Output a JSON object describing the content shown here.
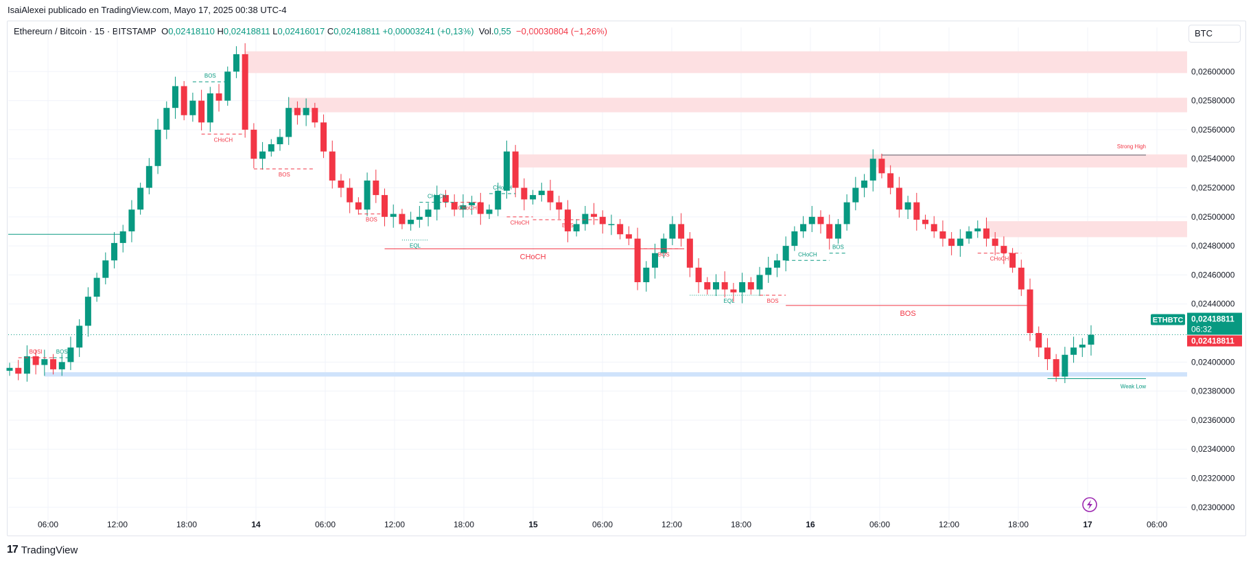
{
  "header": {
    "published_by": "IsaiAlexei publicado en TradingView.com, Mayo 17, 2025 00:38 UTC-4"
  },
  "legend": {
    "symbol": "Ethereum / Bitcoin · 15 · BITSTAMP",
    "o_label": "O",
    "o_value": "0,02418110",
    "h_label": "H",
    "h_value": "0,02418811",
    "l_label": "L",
    "l_value": "0,02416017",
    "c_label": "C",
    "c_value": "0,02418811",
    "change": "+0,00003241 (+0,13%)",
    "vol_label": "Vol.",
    "vol_value": "0,55",
    "vol_change": "−0,00030804 (−1,26%)"
  },
  "currency_button": "BTC",
  "brand": {
    "logo": "17",
    "name": "TradingView"
  },
  "colors": {
    "up": "#089981",
    "down": "#f23645",
    "supply_zone": "#fde0e2",
    "demand_zone": "#cfe3fb",
    "grid": "#f0f3fa"
  },
  "chart_data": {
    "type": "candlestick",
    "x": [
      "06:00",
      "12:00",
      "18:00",
      "14",
      "06:00",
      "12:00",
      "18:00",
      "15",
      "06:00",
      "12:00",
      "18:00",
      "16",
      "06:00",
      "12:00",
      "18:00",
      "17",
      "06:00"
    ],
    "y_ticks": [
      "0,02600000",
      "0,02580000",
      "0,02560000",
      "0,02540000",
      "0,02520000",
      "0,02500000",
      "0,02480000",
      "0,02460000",
      "0,02440000",
      "0,02400000",
      "0,02380000",
      "0,02360000",
      "0,02340000",
      "0,02320000",
      "0,02300000"
    ],
    "ylim": [
      0.0229,
      0.0262
    ],
    "price_tag": {
      "symbol": "ETHBTC",
      "price": "0,02418811",
      "countdown": "06:32",
      "last": "0,02418811"
    },
    "close_path": [
      0.02396,
      0.02392,
      0.02404,
      0.02398,
      0.02402,
      0.02395,
      0.024,
      0.0241,
      0.02425,
      0.02445,
      0.02458,
      0.0247,
      0.02482,
      0.0249,
      0.02505,
      0.0252,
      0.02535,
      0.0256,
      0.02575,
      0.0259,
      0.0257,
      0.0258,
      0.02565,
      0.02585,
      0.0258,
      0.026,
      0.02612,
      0.0256,
      0.0254,
      0.02545,
      0.0255,
      0.02555,
      0.02575,
      0.0257,
      0.02575,
      0.02565,
      0.02545,
      0.02525,
      0.0252,
      0.0251,
      0.02505,
      0.02525,
      0.02515,
      0.025,
      0.02502,
      0.02495,
      0.02498,
      0.025,
      0.02505,
      0.02515,
      0.0251,
      0.02505,
      0.02508,
      0.0251,
      0.02502,
      0.02505,
      0.02518,
      0.02545,
      0.0252,
      0.02512,
      0.02515,
      0.02518,
      0.0251,
      0.02505,
      0.0249,
      0.02495,
      0.02502,
      0.025,
      0.02495,
      0.02495,
      0.02488,
      0.02485,
      0.02455,
      0.02465,
      0.02475,
      0.02485,
      0.02495,
      0.02485,
      0.02465,
      0.02455,
      0.0245,
      0.02455,
      0.0245,
      0.02448,
      0.02455,
      0.0245,
      0.0246,
      0.02465,
      0.0247,
      0.0248,
      0.0249,
      0.02495,
      0.025,
      0.02495,
      0.02485,
      0.02495,
      0.0251,
      0.0252,
      0.02525,
      0.0254,
      0.0253,
      0.0252,
      0.02505,
      0.0251,
      0.02498,
      0.02495,
      0.0249,
      0.02485,
      0.0248,
      0.02485,
      0.0249,
      0.02492,
      0.02485,
      0.0248,
      0.02475,
      0.02465,
      0.0245,
      0.0242,
      0.0241,
      0.02402,
      0.0239,
      0.02405,
      0.0241,
      0.02412,
      0.02418811
    ],
    "zones": [
      {
        "type": "supply",
        "from_index": 27,
        "top": 0.02614,
        "bottom": 0.02599
      },
      {
        "type": "supply",
        "from_index": 32,
        "top": 0.02582,
        "bottom": 0.02572
      },
      {
        "type": "supply",
        "from_index": 58,
        "top": 0.02543,
        "bottom": 0.02534
      },
      {
        "type": "supply",
        "from_index": 112,
        "top": 0.02497,
        "bottom": 0.02486
      },
      {
        "type": "demand",
        "from_index": 4,
        "top": 0.02393,
        "bottom": 0.0239
      }
    ],
    "structures": [
      {
        "label": "BQSI",
        "kind": "dash",
        "color": "down",
        "y": 0.02403,
        "from_index": 1,
        "to_index": 5,
        "label_pos": "above"
      },
      {
        "label": "BOS",
        "kind": "dash",
        "color": "up",
        "y": 0.02403,
        "from_index": 5,
        "to_index": 7,
        "label_pos": "above"
      },
      {
        "label": "BOS",
        "kind": "dash",
        "color": "up",
        "y": 0.02593,
        "from_index": 21,
        "to_index": 25,
        "label_pos": "above"
      },
      {
        "label": "CHoCH",
        "kind": "dash",
        "color": "down",
        "y": 0.02557,
        "from_index": 22,
        "to_index": 27,
        "label_pos": "below"
      },
      {
        "label": "BOS",
        "kind": "dash",
        "color": "down",
        "y": 0.02533,
        "from_index": 28,
        "to_index": 35,
        "label_pos": "below"
      },
      {
        "label": "BOS",
        "kind": "dash",
        "color": "down",
        "y": 0.02502,
        "from_index": 40,
        "to_index": 43,
        "label_pos": "below"
      },
      {
        "label": "CHoCH",
        "kind": "solid",
        "color": "down",
        "y": 0.02478,
        "from_index": 43,
        "to_index": 77,
        "label_pos": "below"
      },
      {
        "label": "EQL",
        "kind": "dot",
        "color": "up",
        "y": 0.02484,
        "from_index": 45,
        "to_index": 48,
        "label_pos": "below"
      },
      {
        "label": "CHoCH",
        "kind": "dash",
        "color": "up",
        "y": 0.0251,
        "from_index": 47,
        "to_index": 51,
        "label_pos": "above"
      },
      {
        "label": "CHoCH",
        "kind": "dash",
        "color": "down",
        "y": 0.0251,
        "from_index": 51,
        "to_index": 54,
        "label_pos": "below"
      },
      {
        "label": "CHoCH",
        "kind": "dash",
        "color": "up",
        "y": 0.02516,
        "from_index": 55,
        "to_index": 58,
        "label_pos": "above"
      },
      {
        "label": "CHoCH",
        "kind": "dash",
        "color": "down",
        "y": 0.025,
        "from_index": 57,
        "to_index": 60,
        "label_pos": "below"
      },
      {
        "label": "BOS",
        "kind": "dash",
        "color": "down",
        "y": 0.02498,
        "from_index": 60,
        "to_index": 68,
        "label_pos": "below"
      },
      {
        "label": "BOS",
        "kind": "dash",
        "color": "down",
        "y": 0.02478,
        "from_index": 72,
        "to_index": 78,
        "label_pos": "below"
      },
      {
        "label": "EQL",
        "kind": "dot",
        "color": "up",
        "y": 0.02446,
        "from_index": 78,
        "to_index": 87,
        "label_pos": "below"
      },
      {
        "label": "BOS",
        "kind": "dash",
        "color": "down",
        "y": 0.02446,
        "from_index": 86,
        "to_index": 89,
        "label_pos": "below"
      },
      {
        "label": "CHoCH",
        "kind": "dash",
        "color": "up",
        "y": 0.0247,
        "from_index": 89,
        "to_index": 94,
        "label_pos": "above"
      },
      {
        "label": "BOS",
        "kind": "dash",
        "color": "up",
        "y": 0.02475,
        "from_index": 94,
        "to_index": 96,
        "label_pos": "above"
      },
      {
        "label": "BOS",
        "kind": "solid",
        "color": "down",
        "y": 0.02439,
        "from_index": 89,
        "to_index": 117,
        "label_pos": "below"
      },
      {
        "label": "CHoCH",
        "kind": "dash",
        "color": "down",
        "y": 0.02475,
        "from_index": 111,
        "to_index": 116,
        "label_pos": "below"
      }
    ],
    "strong_high": {
      "label": "Strong High",
      "y": 0.025425,
      "from_index": 100
    },
    "weak_low": {
      "label": "Weak Low",
      "y": 0.0239,
      "from_index": 119
    },
    "left_level": {
      "y": 0.02488
    }
  }
}
